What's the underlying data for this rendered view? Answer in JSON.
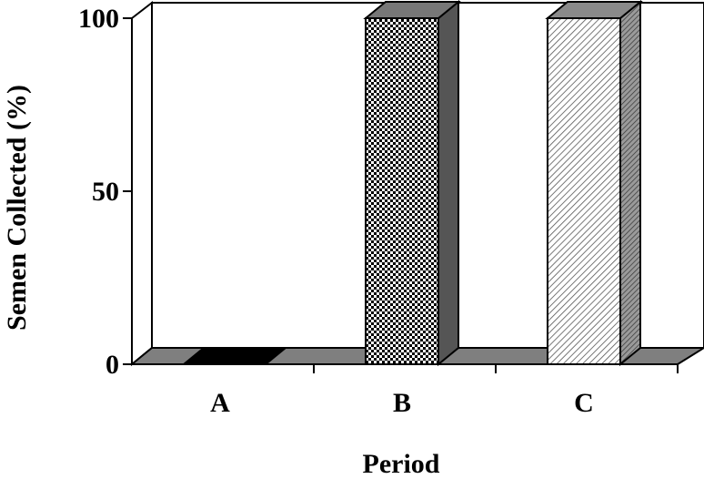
{
  "chart_data": {
    "type": "bar",
    "categories": [
      "A",
      "B",
      "C"
    ],
    "values": [
      0,
      100,
      100
    ],
    "xlabel": "Period",
    "ylabel": "Semen Collected (%)",
    "ylim": [
      0,
      100
    ],
    "yticks": [
      "0",
      "50",
      "100"
    ],
    "grid": false,
    "legend": "none",
    "three_d": true
  },
  "colors": {
    "floor": "#7f7f7f",
    "back_wall": "#ffffff",
    "bar_a": "#000000",
    "bar_b_side": "#555555",
    "bar_b_top": "#777777",
    "bar_c_side": "#6a6a6a",
    "bar_c_top": "#8a8a8a"
  }
}
